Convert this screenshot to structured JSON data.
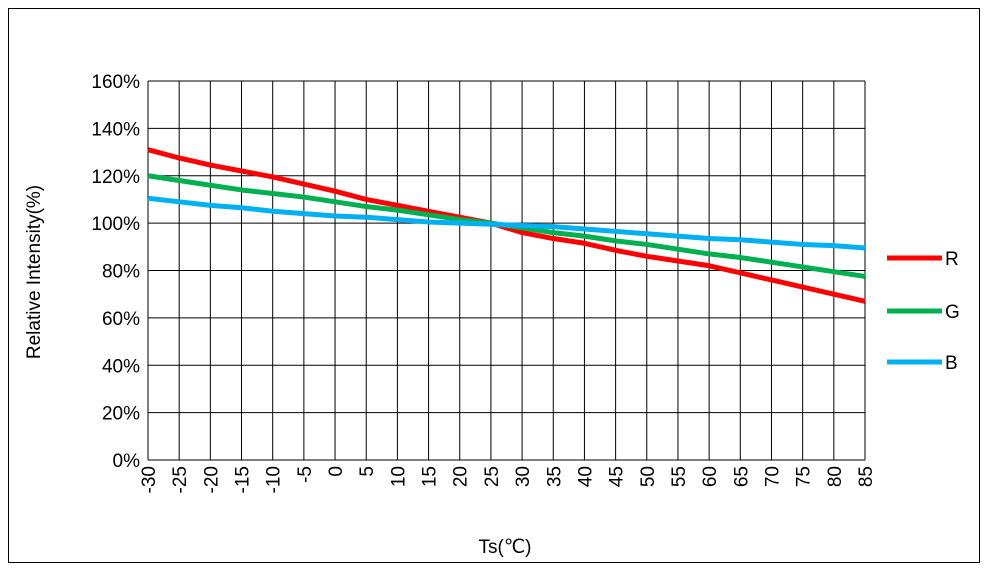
{
  "chart_data": {
    "type": "line",
    "xlabel": "Ts(℃)",
    "ylabel": "Relative Intensity(%)",
    "x": [
      -30,
      -25,
      -20,
      -15,
      -10,
      -5,
      0,
      5,
      10,
      15,
      20,
      25,
      30,
      35,
      40,
      45,
      50,
      55,
      60,
      65,
      70,
      75,
      80,
      85
    ],
    "x_tick_labels": [
      "-30",
      "-25",
      "-20",
      "-15",
      "-10",
      "-5",
      "0",
      "5",
      "10",
      "15",
      "20",
      "25",
      "30",
      "35",
      "40",
      "45",
      "50",
      "55",
      "60",
      "65",
      "70",
      "75",
      "80",
      "85"
    ],
    "y_tick_labels": [
      "0%",
      "20%",
      "40%",
      "60%",
      "80%",
      "100%",
      "120%",
      "140%",
      "160%"
    ],
    "xlim": [
      -30,
      85
    ],
    "ylim": [
      0,
      160
    ],
    "grid": true,
    "legend_position": "right",
    "series": [
      {
        "name": "R",
        "color": "#ff0000",
        "values": [
          131,
          127.5,
          124.5,
          122,
          119.5,
          116.5,
          113.5,
          110,
          107.5,
          105,
          102.5,
          100,
          96,
          93.5,
          91.5,
          88.5,
          86,
          84,
          82,
          79,
          76,
          73,
          70,
          67
        ]
      },
      {
        "name": "G",
        "color": "#00b050",
        "values": [
          120,
          118,
          116,
          114,
          112.5,
          111,
          109,
          107,
          105.5,
          103.5,
          101.5,
          100,
          98,
          96,
          94.5,
          92.5,
          91,
          89,
          87,
          85.5,
          83.5,
          81.5,
          79.5,
          77.5
        ]
      },
      {
        "name": "B",
        "color": "#00b0f0",
        "values": [
          110.5,
          109,
          107.5,
          106.5,
          105,
          104,
          103,
          102.5,
          101.5,
          100.5,
          100,
          99.5,
          99,
          98.5,
          97.5,
          96.5,
          95.5,
          94.5,
          93.5,
          93,
          92,
          91,
          90.5,
          89.5
        ]
      }
    ]
  }
}
